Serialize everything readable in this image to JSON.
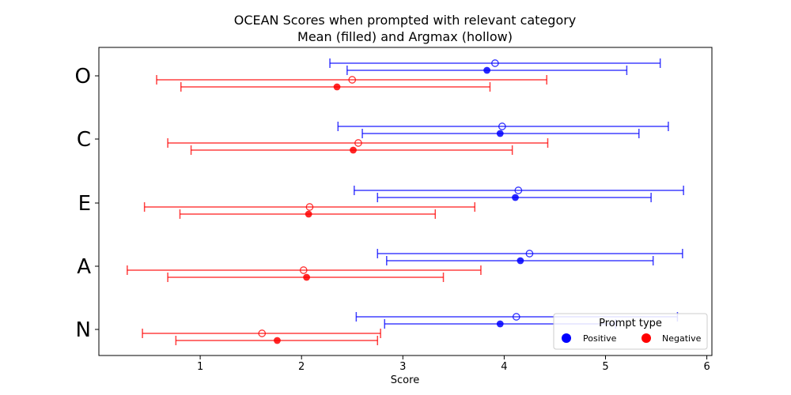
{
  "chart_data": {
    "type": "scatter",
    "title_line1": "OCEAN Scores when prompted with relevant category",
    "title_line2": "Mean (filled) and Argmax (hollow)",
    "xlabel": "Score",
    "ylabel": "",
    "xlim": [
      0.0,
      6.05
    ],
    "x_ticks": [
      1,
      2,
      3,
      4,
      5,
      6
    ],
    "categories": [
      "O",
      "C",
      "E",
      "A",
      "N"
    ],
    "grid": false,
    "legend": {
      "title": "Prompt type",
      "placement": "lower-right",
      "entries": [
        "Positive",
        "Negative"
      ]
    },
    "series": [
      {
        "name": "Positive",
        "color": "#0000ff",
        "mean": [
          3.83,
          3.96,
          4.11,
          4.16,
          3.96
        ],
        "mean_err_low": [
          2.45,
          2.6,
          2.75,
          2.84,
          2.82
        ],
        "mean_err_high": [
          5.21,
          5.33,
          5.45,
          5.47,
          5.1
        ],
        "argmax": [
          3.91,
          3.98,
          4.14,
          4.25,
          4.12
        ],
        "argmax_err_low": [
          2.28,
          2.36,
          2.52,
          2.75,
          2.54
        ],
        "argmax_err_high": [
          5.54,
          5.62,
          5.77,
          5.76,
          5.71
        ]
      },
      {
        "name": "Negative",
        "color": "#ff0000",
        "mean": [
          2.35,
          2.51,
          2.07,
          2.05,
          1.76
        ],
        "mean_err_low": [
          0.81,
          0.91,
          0.8,
          0.68,
          0.76
        ],
        "mean_err_high": [
          3.86,
          4.08,
          3.32,
          3.4,
          2.75
        ],
        "argmax": [
          2.5,
          2.56,
          2.08,
          2.02,
          1.61
        ],
        "argmax_err_low": [
          0.57,
          0.68,
          0.45,
          0.28,
          0.43
        ],
        "argmax_err_high": [
          4.42,
          4.43,
          3.71,
          3.77,
          2.78
        ]
      }
    ]
  }
}
